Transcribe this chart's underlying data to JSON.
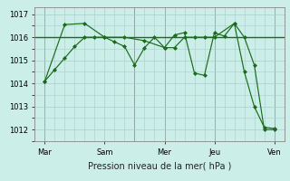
{
  "background_color": "#cceee8",
  "grid_color": "#aacccc",
  "line_color": "#1a6b1a",
  "marker_color": "#1a6b1a",
  "xlim": [
    0,
    100
  ],
  "ylim": [
    1011.5,
    1017.3
  ],
  "yticks": [
    1012,
    1013,
    1014,
    1015,
    1016,
    1017
  ],
  "xtick_labels": [
    "Mar",
    "Sam",
    "Mer",
    "Jeu",
    "Ven"
  ],
  "xtick_positions": [
    4,
    28,
    52,
    72,
    96
  ],
  "xlabel": "Pression niveau de la mer( hPa )",
  "vlines": [
    4,
    40,
    52,
    72,
    96
  ],
  "series1_x": [
    4,
    8,
    12,
    16,
    20,
    24,
    28,
    32,
    36,
    40,
    44,
    48,
    52,
    56,
    60,
    64,
    68,
    72,
    76,
    80,
    84,
    88,
    92,
    96
  ],
  "series1_y": [
    1014.1,
    1014.6,
    1015.1,
    1015.6,
    1016.0,
    1016.0,
    1016.0,
    1015.8,
    1015.6,
    1014.8,
    1015.55,
    1016.0,
    1015.55,
    1016.1,
    1016.2,
    1014.45,
    1014.35,
    1016.2,
    1016.05,
    1016.6,
    1016.0,
    1014.8,
    1012.0,
    1012.0
  ],
  "series2_x": [
    4,
    12,
    20,
    28,
    36,
    44,
    52,
    56,
    60,
    64,
    68,
    72,
    80,
    84,
    88,
    92,
    96
  ],
  "series2_y": [
    1014.1,
    1016.55,
    1016.6,
    1016.0,
    1016.0,
    1015.85,
    1015.55,
    1015.55,
    1016.0,
    1016.0,
    1016.0,
    1016.0,
    1016.6,
    1014.5,
    1013.0,
    1012.1,
    1012.05
  ],
  "hline_y": 1016.0,
  "label_fontsize": 7,
  "tick_fontsize": 6
}
